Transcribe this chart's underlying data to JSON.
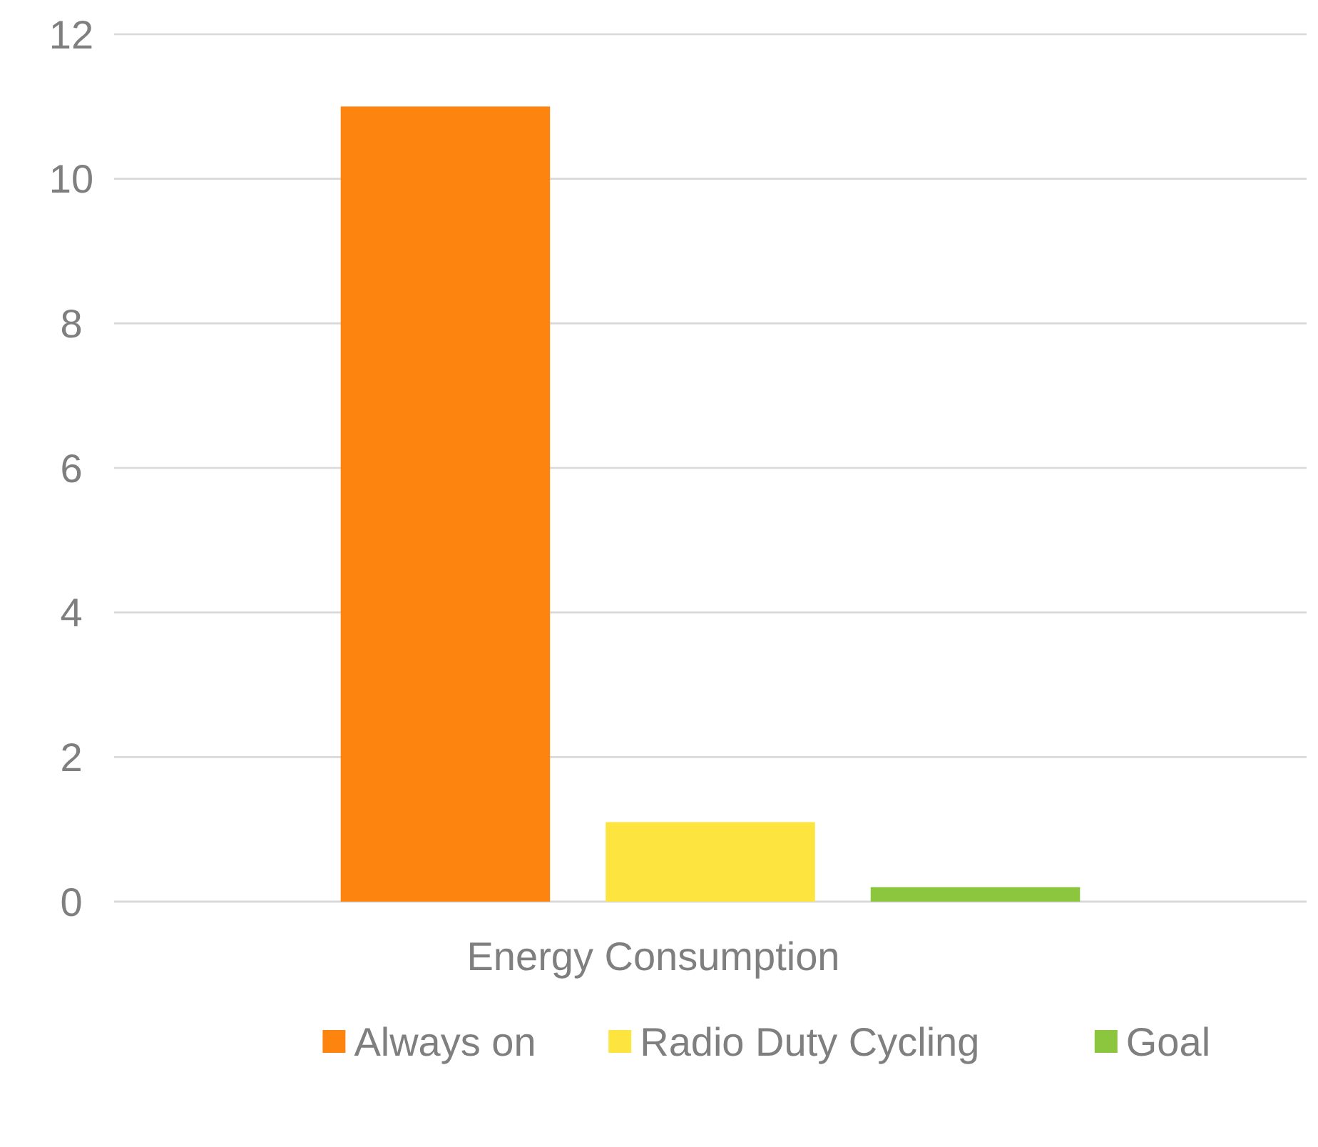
{
  "chart_data": {
    "type": "bar",
    "categories": [
      "Energy Consumption"
    ],
    "series": [
      {
        "name": "Always on",
        "color": "#fd850f",
        "values": [
          11
        ]
      },
      {
        "name": "Radio Duty Cycling",
        "color": "#fde43f",
        "values": [
          1.1
        ]
      },
      {
        "name": "Goal",
        "color": "#8cc63e",
        "values": [
          0.2
        ]
      }
    ],
    "ylim": [
      0,
      12
    ],
    "yticks": [
      0,
      2,
      4,
      6,
      8,
      10,
      12
    ],
    "grid": "y",
    "legend": "bottom"
  }
}
